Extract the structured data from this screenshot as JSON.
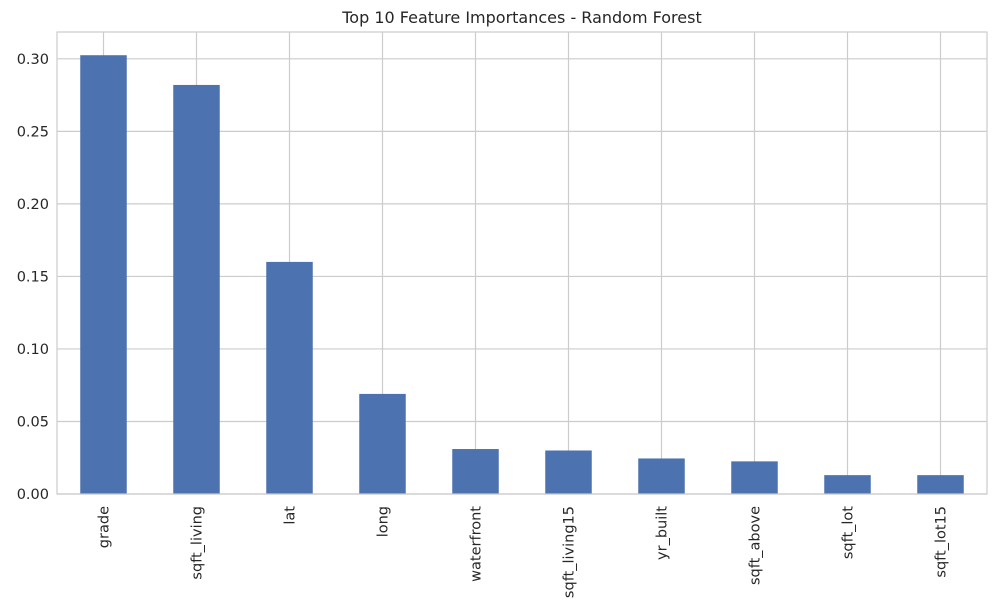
{
  "chart_data": {
    "type": "bar",
    "title": "Top 10 Feature Importances - Random Forest",
    "xlabel": "",
    "ylabel": "",
    "categories": [
      "grade",
      "sqft_living",
      "lat",
      "long",
      "waterfront",
      "sqft_living15",
      "yr_built",
      "sqft_above",
      "sqft_lot",
      "sqft_lot15"
    ],
    "values": [
      0.3025,
      0.282,
      0.16,
      0.069,
      0.031,
      0.03,
      0.0245,
      0.0225,
      0.013,
      0.013
    ],
    "ylim": [
      0,
      0.3185
    ],
    "yticks": [
      0.0,
      0.05,
      0.1,
      0.15,
      0.2,
      0.25,
      0.3
    ],
    "ytick_labels": [
      "0.00",
      "0.05",
      "0.10",
      "0.15",
      "0.20",
      "0.25",
      "0.30"
    ],
    "grid": true,
    "bar_color": "#4c72b0",
    "grid_color": "#cccccc",
    "text_color": "#262626"
  }
}
